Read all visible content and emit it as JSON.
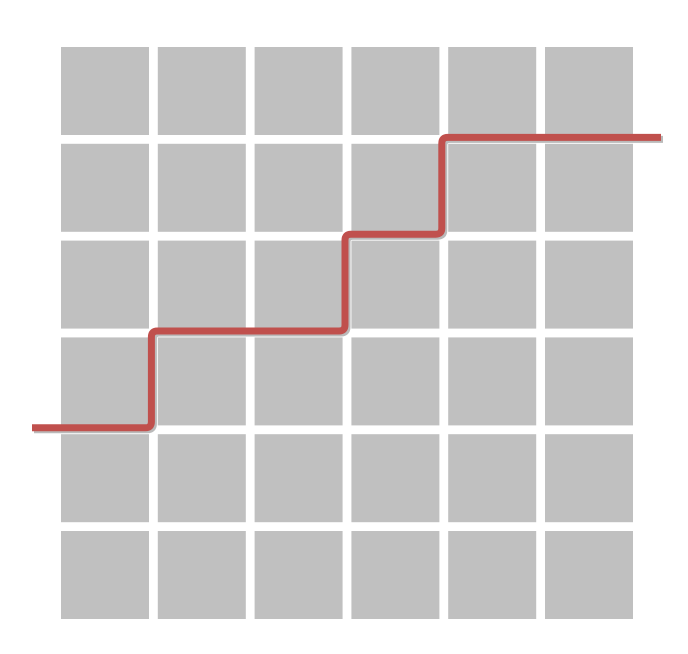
{
  "grid": {
    "rows": 6,
    "cols": 6,
    "tile_color": "#c0c0c0",
    "background_color": "#ffffff"
  },
  "step_line": {
    "color": "#c0504d",
    "shadow_color": "#8c8c8c",
    "levels_by_column": [
      2,
      3,
      3,
      4,
      5,
      5
    ],
    "start_level": 2,
    "end_level": 5
  }
}
